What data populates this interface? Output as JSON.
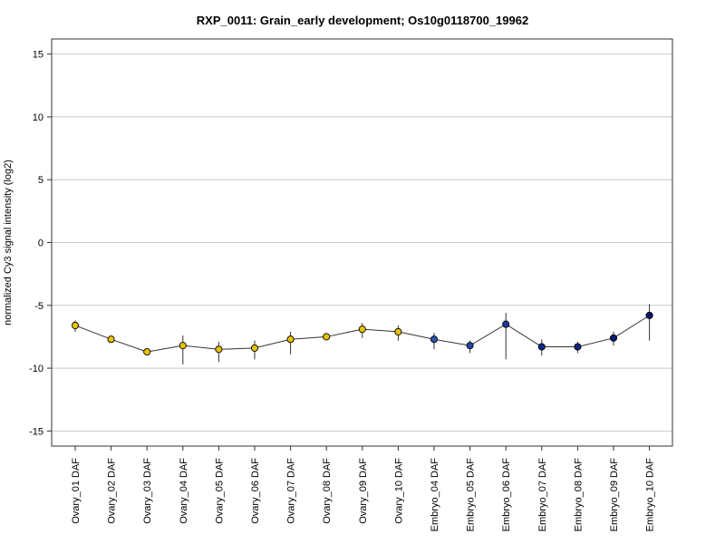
{
  "chart_data": {
    "type": "line",
    "title": "RXP_0011: Grain_early development; Os10g0118700_19962",
    "xlabel": "",
    "ylabel": "normalized Cy3 signal intensity (log2)",
    "ylim": [
      -16.2,
      16.2
    ],
    "yticks": [
      15,
      10,
      5,
      0,
      -5,
      -10,
      -15
    ],
    "ytick_labels": [
      "15",
      "10",
      "5",
      "0",
      "-5",
      "-10",
      "-15"
    ],
    "grid": "horizontal",
    "categories": [
      "Ovary_01 DAF",
      "Ovary_02 DAF",
      "Ovary_03 DAF",
      "Ovary_04 DAF",
      "Ovary_05 DAF",
      "Ovary_06 DAF",
      "Ovary_07 DAF",
      "Ovary_08 DAF",
      "Ovary_09 DAF",
      "Ovary_10 DAF",
      "Embryo_04 DAF",
      "Embryo_05 DAF",
      "Embryo_06 DAF",
      "Embryo_07 DAF",
      "Embryo_08 DAF",
      "Embryo_09 DAF",
      "Embryo_10 DAF"
    ],
    "values": [
      -6.6,
      -7.7,
      -8.7,
      -8.2,
      -8.5,
      -8.4,
      -7.7,
      -7.5,
      -6.9,
      -7.1,
      -7.7,
      -8.2,
      -6.5,
      -8.3,
      -8.3,
      -7.6,
      -5.8
    ],
    "error_low": [
      -7.1,
      -7.8,
      -8.9,
      -9.7,
      -9.5,
      -9.3,
      -8.9,
      -7.7,
      -7.6,
      -7.8,
      -8.5,
      -8.8,
      -9.3,
      -9.0,
      -8.8,
      -8.2,
      -7.8
    ],
    "error_high": [
      -6.2,
      -7.6,
      -8.5,
      -7.4,
      -7.9,
      -7.8,
      -7.1,
      -7.3,
      -6.4,
      -6.6,
      -7.2,
      -7.8,
      -5.6,
      -7.7,
      -7.9,
      -7.1,
      -4.9
    ],
    "point_colors": [
      "#e8c200",
      "#e8c200",
      "#e8c200",
      "#e8c200",
      "#e8c200",
      "#e8c200",
      "#e8c200",
      "#e8c200",
      "#e8c200",
      "#e8c200",
      "#2a55a8",
      "#1e4aa0",
      "#1a3a9a",
      "#112a8c",
      "#0c2480",
      "#081c74",
      "#05166a"
    ],
    "line_color": "#333333",
    "grid_color": "#c8c8c8"
  }
}
